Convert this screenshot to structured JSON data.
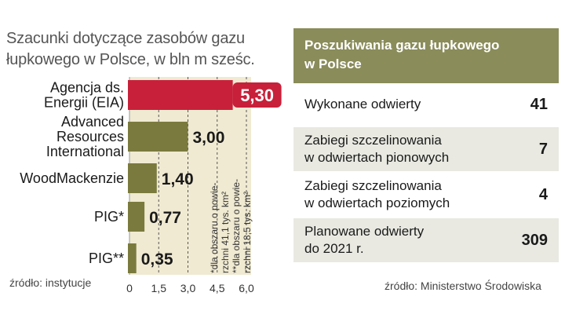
{
  "left": {
    "title_lines": [
      "Szacunki dotyczące zasobów gazu",
      "łupkowego w Polsce, w bln m sześc."
    ],
    "source": "źródło: instytucje",
    "footnote_lines": [
      "*dla obszaru o powie-",
      "rzchni 41,1 tys. km²",
      "**dla obszaru o powie-",
      "rzchni 18,5 tys. km²"
    ]
  },
  "chart_data": {
    "type": "bar",
    "orientation": "horizontal",
    "categories": [
      [
        "Agencja ds.",
        "Energii (EIA)"
      ],
      [
        "Advanced",
        "Resources",
        "International"
      ],
      [
        "WoodMackenzie"
      ],
      [
        "PIG*"
      ],
      [
        "PIG**"
      ]
    ],
    "values": [
      5.3,
      3.0,
      1.4,
      0.77,
      0.35
    ],
    "value_labels": [
      "5,30",
      "3,00",
      "1,40",
      "0,77",
      "0,35"
    ],
    "xticks": [
      0,
      1.5,
      3.0,
      4.5,
      6.0
    ],
    "xtick_labels": [
      "0",
      "1,5",
      "3,0",
      "4,5",
      "6,0"
    ],
    "xlim": [
      0,
      6.0
    ],
    "highlight_index": 0,
    "colors": {
      "bar": "#7a7a3e",
      "highlight": "#c8203a",
      "band": "#f0ead2",
      "grid": "#555555"
    }
  },
  "right": {
    "header_lines": [
      "Poszukiwania gazu łupkowego",
      "w Polsce"
    ],
    "rows": [
      {
        "label_lines": [
          "Wykonane odwierty"
        ],
        "value": "41"
      },
      {
        "label_lines": [
          "Zabiegi szczelinowania",
          "w odwiertach pionowych"
        ],
        "value": "7"
      },
      {
        "label_lines": [
          "Zabiegi szczelinowania",
          "w odwiertach poziomych"
        ],
        "value": "4"
      },
      {
        "label_lines": [
          "Planowane odwierty",
          "do 2021 r."
        ],
        "value": "309"
      }
    ],
    "source": "źródło: Ministerstwo Środowiska",
    "colors": {
      "header": "#8a8c5a",
      "row_alt": "#e9e9e2"
    }
  }
}
